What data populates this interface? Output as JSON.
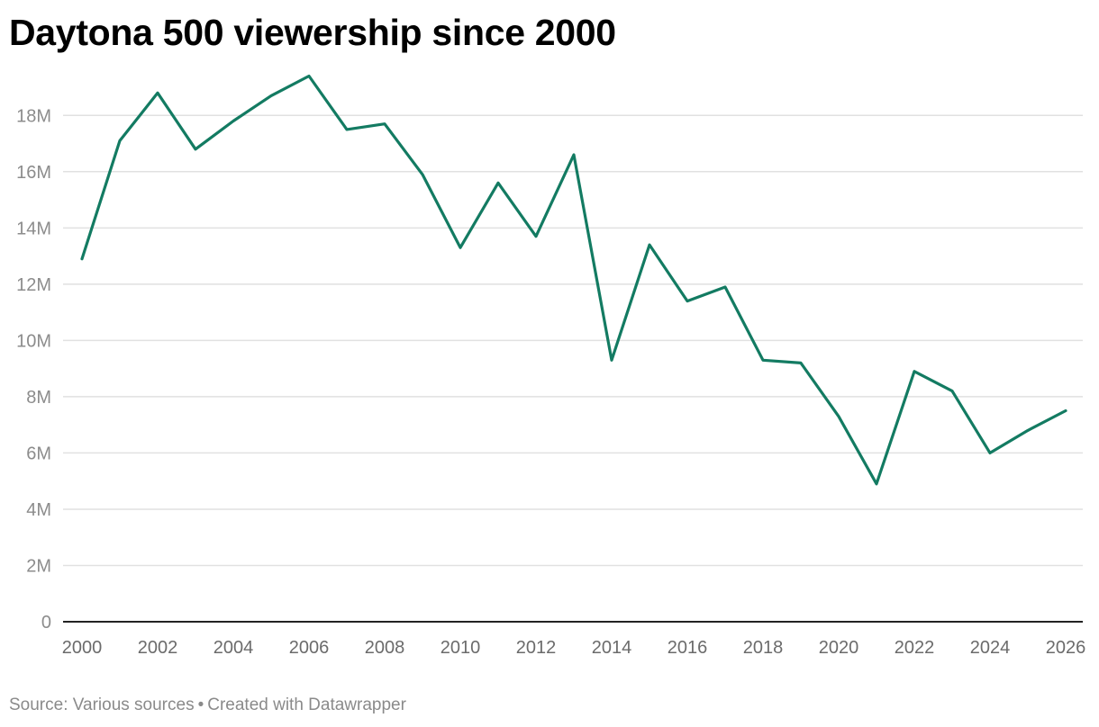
{
  "title": "Daytona 500 viewership since 2000",
  "footer": {
    "source": "Source: Various sources",
    "separator": "•",
    "credit": "Created with Datawrapper"
  },
  "colors": {
    "line": "#137b62",
    "grid": "#e1e1e1",
    "axis": "#222222",
    "tick_text": "#8c8c8c"
  },
  "chart_data": {
    "type": "line",
    "title": "Daytona 500 viewership since 2000",
    "xlabel": "",
    "ylabel": "",
    "xlim": [
      2000,
      2026
    ],
    "ylim": [
      0,
      19.8
    ],
    "grid": true,
    "x_ticks": [
      2000,
      2002,
      2004,
      2006,
      2008,
      2010,
      2012,
      2014,
      2016,
      2018,
      2020,
      2022,
      2024,
      2026
    ],
    "x_tick_labels": [
      "2000",
      "2002",
      "2004",
      "2006",
      "2008",
      "2010",
      "2012",
      "2014",
      "2016",
      "2018",
      "2020",
      "2022",
      "2024",
      "2026"
    ],
    "y_ticks": [
      0,
      2,
      4,
      6,
      8,
      10,
      12,
      14,
      16,
      18
    ],
    "y_tick_labels": [
      "0",
      "2M",
      "4M",
      "6M",
      "8M",
      "10M",
      "12M",
      "14M",
      "16M",
      "18M"
    ],
    "series": [
      {
        "x": [
          2000,
          2001,
          2002,
          2003,
          2004,
          2005,
          2006,
          2007,
          2008,
          2009,
          2010,
          2011,
          2012,
          2013,
          2014,
          2015,
          2016,
          2017,
          2018,
          2019,
          2020,
          2021,
          2022,
          2023,
          2024,
          2025,
          2026
        ],
        "values": [
          12.9,
          17.1,
          18.8,
          16.8,
          17.8,
          18.7,
          19.4,
          17.5,
          17.7,
          15.9,
          13.3,
          15.6,
          13.7,
          16.6,
          9.3,
          13.4,
          11.4,
          11.9,
          9.3,
          9.2,
          7.3,
          4.9,
          8.9,
          8.2,
          6.0,
          6.8,
          7.5
        ]
      }
    ]
  }
}
